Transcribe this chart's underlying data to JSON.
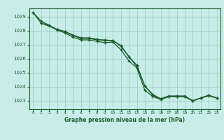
{
  "title": "Graphe pression niveau de la mer (hPa)",
  "bg_color": "#c8ede8",
  "grid_color": "#9dd4cc",
  "line_color": "#1a5c2a",
  "text_color": "#1a5c2a",
  "xlim": [
    -0.5,
    23.5
  ],
  "ylim": [
    1022.4,
    1029.6
  ],
  "yticks": [
    1023,
    1024,
    1025,
    1026,
    1027,
    1028,
    1029
  ],
  "xticks": [
    0,
    1,
    2,
    3,
    4,
    5,
    6,
    7,
    8,
    9,
    10,
    11,
    12,
    13,
    14,
    15,
    16,
    17,
    18,
    19,
    20,
    21,
    22,
    23
  ],
  "series1": {
    "x": [
      0,
      1,
      2,
      3,
      4,
      5,
      6,
      7,
      8,
      9,
      10,
      11,
      12,
      13,
      14,
      15,
      16,
      17,
      18,
      19,
      20,
      21,
      22,
      23
    ],
    "y": [
      1029.3,
      1028.7,
      1028.4,
      1028.05,
      1027.85,
      1027.55,
      1027.35,
      1027.35,
      1027.25,
      1027.15,
      1027.2,
      1026.65,
      1025.85,
      1025.35,
      1023.75,
      1023.3,
      1023.1,
      1023.3,
      1023.3,
      1023.3,
      1023.0,
      1023.2,
      1023.35,
      1023.2
    ]
  },
  "series2": {
    "x": [
      0,
      1,
      2,
      3,
      4,
      5,
      6,
      7,
      8,
      9,
      10,
      11,
      12,
      13,
      14,
      15,
      16,
      17,
      18,
      19,
      20,
      21,
      22,
      23
    ],
    "y": [
      1029.3,
      1028.55,
      1028.4,
      1028.1,
      1027.95,
      1027.65,
      1027.45,
      1027.45,
      1027.35,
      1027.35,
      1027.3,
      1026.9,
      1026.15,
      1025.55,
      1024.05,
      1023.45,
      1023.15,
      1023.35,
      1023.35,
      1023.35,
      1023.0,
      1023.2,
      1023.4,
      1023.2
    ]
  },
  "series3": {
    "x": [
      1,
      3,
      4,
      5,
      6,
      7,
      8,
      9,
      10,
      11,
      12,
      13,
      14,
      15,
      16,
      17,
      18,
      19,
      20,
      21,
      22,
      23
    ],
    "y": [
      1028.55,
      1028.1,
      1027.95,
      1027.7,
      1027.5,
      1027.5,
      1027.4,
      1027.3,
      1027.3,
      1026.95,
      1026.15,
      1025.45,
      1024.05,
      1023.4,
      1023.1,
      1023.3,
      1023.3,
      1023.3,
      1023.0,
      1023.2,
      1023.4,
      1023.2
    ]
  }
}
